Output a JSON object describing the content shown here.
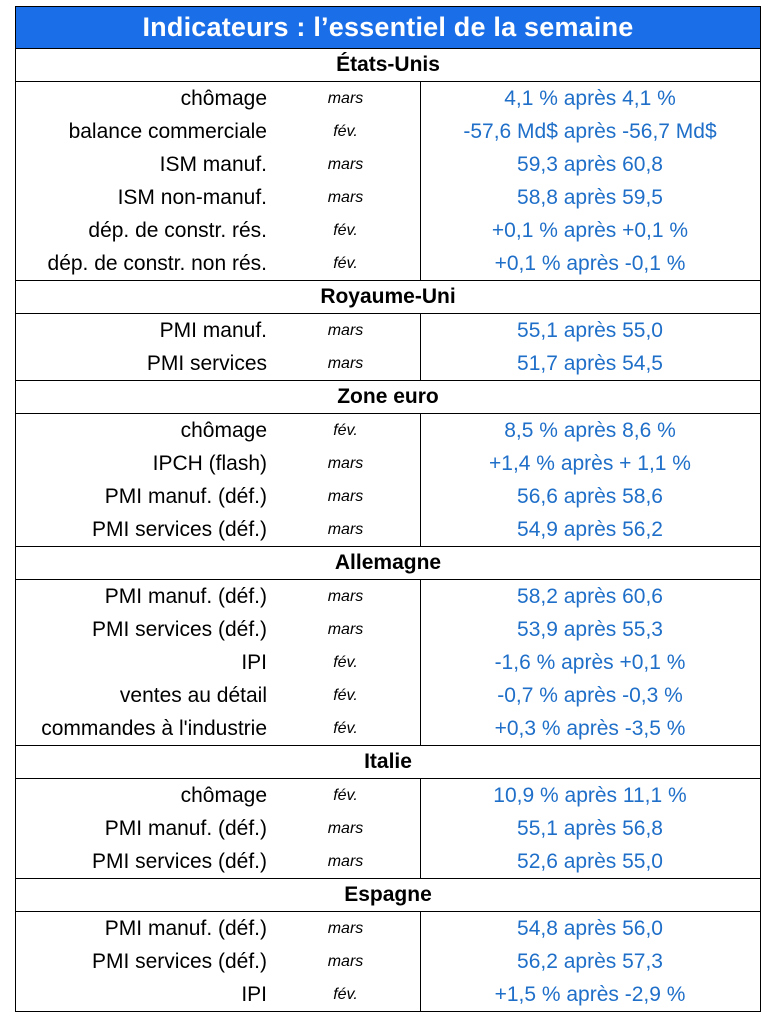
{
  "title": "Indicateurs : l’essentiel de la semaine",
  "sections": [
    {
      "name": "États-Unis",
      "rows": [
        {
          "label": "chômage",
          "period": "mars",
          "value": "4,1 % après 4,1 %"
        },
        {
          "label": "balance commerciale",
          "period": "fév.",
          "value": "-57,6 Md$ après -56,7 Md$"
        },
        {
          "label": "ISM manuf.",
          "period": "mars",
          "value": "59,3 après 60,8"
        },
        {
          "label": "ISM non-manuf.",
          "period": "mars",
          "value": "58,8 après 59,5"
        },
        {
          "label": "dép. de constr. rés.",
          "period": "fév.",
          "value": "+0,1 % après +0,1 %"
        },
        {
          "label": "dép. de constr. non rés.",
          "period": "fév.",
          "value": "+0,1 % après -0,1 %"
        }
      ]
    },
    {
      "name": "Royaume-Uni",
      "rows": [
        {
          "label": "PMI manuf.",
          "period": "mars",
          "value": "55,1 après 55,0"
        },
        {
          "label": "PMI services",
          "period": "mars",
          "value": "51,7 après 54,5"
        }
      ]
    },
    {
      "name": "Zone euro",
      "rows": [
        {
          "label": "chômage",
          "period": "fév.",
          "value": "8,5 % après 8,6 %"
        },
        {
          "label": "IPCH (flash)",
          "period": "mars",
          "value": "+1,4 % après + 1,1 %"
        },
        {
          "label": "PMI manuf. (déf.)",
          "period": "mars",
          "value": "56,6 après 58,6"
        },
        {
          "label": "PMI services (déf.)",
          "period": "mars",
          "value": "54,9 après 56,2"
        }
      ]
    },
    {
      "name": "Allemagne",
      "rows": [
        {
          "label": "PMI manuf. (déf.)",
          "period": "mars",
          "value": "58,2 après 60,6"
        },
        {
          "label": "PMI services (déf.)",
          "period": "mars",
          "value": "53,9 après 55,3"
        },
        {
          "label": "IPI",
          "period": "fév.",
          "value": "-1,6 % après +0,1 %"
        },
        {
          "label": "ventes au détail",
          "period": "fév.",
          "value": "-0,7 % après -0,3 %"
        },
        {
          "label": "commandes à l'industrie",
          "period": "fév.",
          "value": "+0,3 % après -3,5 %"
        }
      ]
    },
    {
      "name": "Italie",
      "rows": [
        {
          "label": "chômage",
          "period": "fév.",
          "value": "10,9 % après 11,1 %"
        },
        {
          "label": "PMI manuf. (déf.)",
          "period": "mars",
          "value": "55,1 après 56,8"
        },
        {
          "label": "PMI services (déf.)",
          "period": "mars",
          "value": "52,6 après 55,0"
        }
      ]
    },
    {
      "name": "Espagne",
      "rows": [
        {
          "label": "PMI manuf. (déf.)",
          "period": "mars",
          "value": "54,8 après 56,0"
        },
        {
          "label": "PMI services (déf.)",
          "period": "mars",
          "value": "56,2 après 57,3"
        },
        {
          "label": "IPI",
          "period": "fév.",
          "value": "+1,5 % après -2,9 %"
        }
      ]
    }
  ],
  "colors": {
    "title_background": "#1a6fe8",
    "title_text": "#ffffff",
    "value_text": "#1f6fc9",
    "label_text": "#000000"
  }
}
